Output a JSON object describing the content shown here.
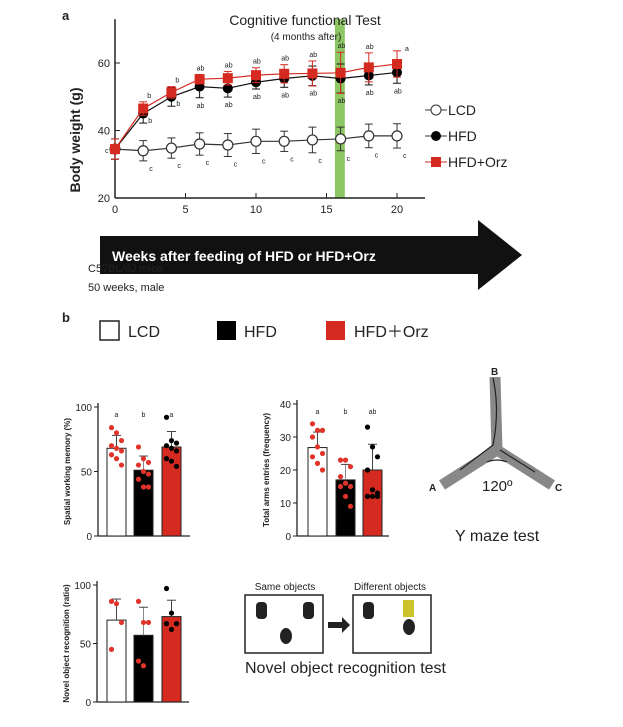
{
  "colors": {
    "lcd": "#ffffff",
    "hfd": "#000000",
    "orz": "#d42a20",
    "green": "#8cc763",
    "dot_red": "#e0342a"
  },
  "panel_a": {
    "label": "a",
    "test_title": "Cognitive functional Test",
    "test_subtitle": "(4 months after)",
    "arrow_text": "Weeks after feeding of HFD or HFD+Orz",
    "mice_line1": "C57BL/6J mice",
    "mice_line2": "50 weeks, male"
  },
  "panel_b": {
    "label": "b",
    "legend": [
      "LCD",
      "HFD",
      "HFD＋Orz"
    ],
    "ymaze_title": "Y maze test",
    "ymaze_angle": "120º",
    "ymaze_arms": [
      "A",
      "B",
      "C"
    ],
    "nor_same": "Same objects",
    "nor_diff": "Different objects",
    "nor_title": "Novel object recognition  test"
  },
  "chart_data": [
    {
      "type": "line",
      "title": "",
      "xlabel": "",
      "ylabel": "Body weight  (g)",
      "xlim": [
        0,
        21.5
      ],
      "ylim": [
        20,
        73
      ],
      "xticks": [
        0,
        5,
        10,
        15,
        20
      ],
      "yticks": [
        20,
        40,
        60
      ],
      "highlight_x": [
        15.6,
        16.3
      ],
      "x": [
        0,
        2,
        4,
        6,
        8,
        10,
        12,
        14,
        16,
        18,
        20
      ],
      "series": [
        {
          "name": "LCD",
          "marker": "open-circle",
          "values": [
            34.5,
            34,
            34.8,
            36,
            35.7,
            36.8,
            36.8,
            37.2,
            37.5,
            38.4,
            38.4
          ],
          "err": [
            3,
            3,
            3,
            3.3,
            3.4,
            3.6,
            3,
            3.8,
            3.5,
            3.5,
            3.6
          ],
          "letters": [
            "c",
            "c",
            "c",
            "c",
            "c",
            "c",
            "c",
            "c",
            "c",
            "c",
            "c"
          ]
        },
        {
          "name": "HFD",
          "marker": "filled-circle",
          "values": [
            34.5,
            45,
            50,
            53,
            52.5,
            54.3,
            55.4,
            56.2,
            55.4,
            56.3,
            57.2
          ],
          "err": [
            3,
            2.8,
            2.8,
            3.3,
            2.6,
            2,
            2.6,
            2.9,
            4.3,
            2.8,
            3.2
          ],
          "letters": [
            "",
            "b",
            "b",
            "ab",
            "ab",
            "ab",
            "ab",
            "ab",
            "ab",
            "ab",
            "ab"
          ]
        },
        {
          "name": "HFD+Orz",
          "marker": "square",
          "values": [
            34.5,
            46.5,
            51.3,
            55.2,
            55.5,
            56.4,
            56.8,
            56.9,
            57.1,
            58.7,
            59.7
          ],
          "err": [
            3,
            2,
            1.7,
            1.4,
            2,
            2.2,
            2.7,
            3.7,
            6.1,
            4.3,
            3.9
          ],
          "letters": [
            "",
            "b",
            "b",
            "ab",
            "ab",
            "ab",
            "ab",
            "ab",
            "ab",
            "ab",
            "a"
          ]
        }
      ]
    },
    {
      "type": "bar",
      "ylabel": "Spatial working memory (%)",
      "ylim": [
        0,
        100
      ],
      "yticks": [
        0,
        50,
        100
      ],
      "categories": [
        "LCD",
        "HFD",
        "HFD+Orz"
      ],
      "values": [
        68,
        51,
        69
      ],
      "err": [
        10,
        11,
        12
      ],
      "letters": [
        "a",
        "b",
        "a"
      ],
      "points": [
        [
          84,
          80,
          74,
          70,
          68,
          66,
          63,
          60,
          55
        ],
        [
          69,
          60,
          57,
          55,
          50,
          48,
          44,
          38,
          38
        ],
        [
          92,
          74,
          72,
          70,
          68,
          66,
          60,
          58,
          54
        ]
      ]
    },
    {
      "type": "bar",
      "ylabel": "Total arms entries (frequency)",
      "ylim": [
        0,
        40
      ],
      "yticks": [
        0,
        10,
        20,
        30,
        40
      ],
      "categories": [
        "LCD",
        "HFD",
        "HFD+Orz"
      ],
      "values": [
        26.8,
        17,
        20
      ],
      "err": [
        4.7,
        4.7,
        7.8
      ],
      "letters": [
        "a",
        "b",
        "ab"
      ],
      "points": [
        [
          34,
          32,
          32,
          30,
          27,
          25,
          24,
          22,
          20
        ],
        [
          23,
          23,
          21,
          18,
          16,
          15,
          15,
          12,
          9
        ],
        [
          33,
          27,
          24,
          20,
          14,
          13,
          12,
          12,
          12
        ]
      ]
    },
    {
      "type": "bar",
      "ylabel": "Novel object recognition (ratio)",
      "ylim": [
        0,
        100
      ],
      "yticks": [
        0,
        50,
        100
      ],
      "categories": [
        "LCD",
        "HFD",
        "HFD+Orz"
      ],
      "values": [
        70,
        57,
        73
      ],
      "err": [
        18,
        24,
        14
      ],
      "letters": [],
      "points": [
        [
          86,
          84,
          68,
          45
        ],
        [
          86,
          68,
          68,
          35,
          31
        ],
        [
          97,
          76,
          67,
          67,
          62
        ]
      ]
    }
  ]
}
